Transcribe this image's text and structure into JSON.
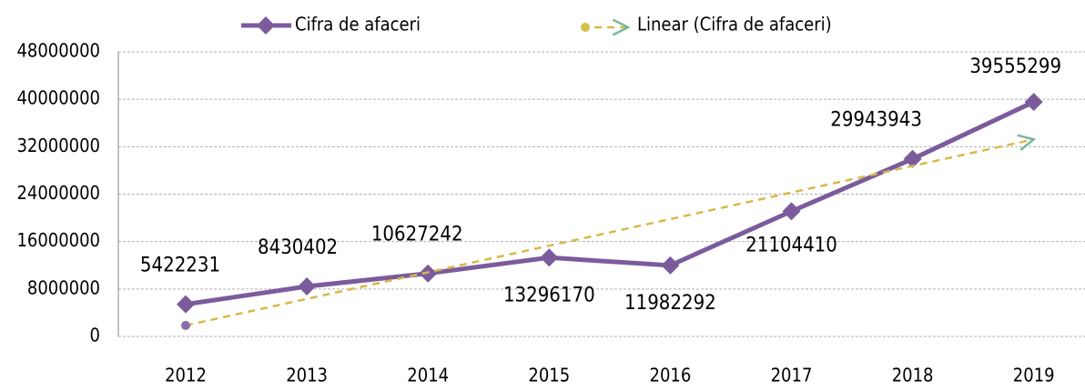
{
  "chart_data": {
    "type": "line",
    "categories": [
      "2012",
      "2013",
      "2014",
      "2015",
      "2016",
      "2017",
      "2018",
      "2019"
    ],
    "series": [
      {
        "name": "Cifra de afaceri",
        "color": "#7b5b9c",
        "values": [
          5422231,
          8430402,
          10627242,
          13296170,
          11982292,
          21104410,
          29943943,
          39555299
        ]
      },
      {
        "name": "Linear (Cifra de afaceri)",
        "color": "#d8b84a",
        "dashed": true,
        "values": [
          1852882,
          6336415,
          10819949,
          15303482,
          19787016,
          24270549,
          28754083,
          33237616
        ]
      }
    ],
    "ylim": [
      0,
      48000000
    ],
    "yticks": [
      0,
      8000000,
      16000000,
      24000000,
      32000000,
      40000000,
      48000000
    ],
    "grid": true,
    "legend": "top"
  }
}
